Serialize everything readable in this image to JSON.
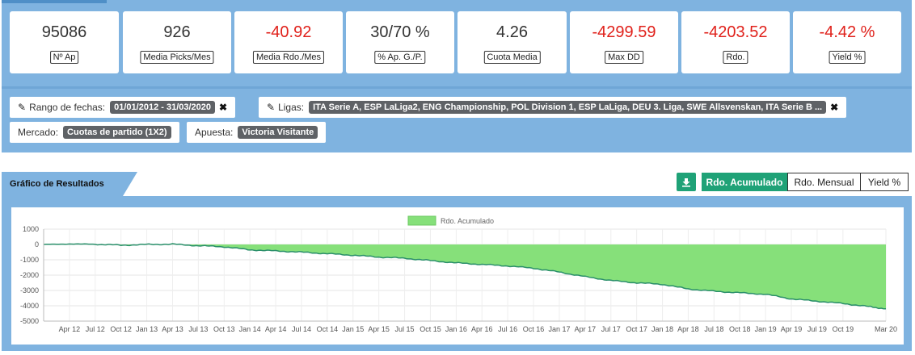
{
  "stats": [
    {
      "value": "95086",
      "label": "Nº Ap",
      "negative": false
    },
    {
      "value": "926",
      "label": "Media Picks/Mes",
      "negative": false
    },
    {
      "value": "-40.92",
      "label": "Media Rdo./Mes",
      "negative": true
    },
    {
      "value": "30/70 %",
      "label": "% Ap. G./P.",
      "negative": false
    },
    {
      "value": "4.26",
      "label": "Cuota Media",
      "negative": false
    },
    {
      "value": "-4299.59",
      "label": "Max DD",
      "negative": true
    },
    {
      "value": "-4203.52",
      "label": "Rdo.",
      "negative": true
    },
    {
      "value": "-4.42 %",
      "label": "Yield %",
      "negative": true
    }
  ],
  "filters": {
    "date_range": {
      "label": "Rango de fechas:",
      "value": "01/01/2012 - 31/03/2020"
    },
    "leagues": {
      "label": "Ligas:",
      "value": "ITA Serie A, ESP LaLiga2, ENG Championship, POL Division 1, ESP LaLiga, DEU 3. Liga, SWE Allsvenskan, ITA Serie B ..."
    },
    "market": {
      "label": "Mercado:",
      "value": "Cuotas de partido (1X2)"
    },
    "bet": {
      "label": "Apuesta:",
      "value": "Victoria Visitante"
    },
    "remove_icon": "close-icon",
    "edit_icon": "pencil-icon"
  },
  "chart_section": {
    "title": "Gráfico de Resultados",
    "download_icon": "download-icon",
    "toggles": [
      "Rdo. Acumulado",
      "Rdo. Mensual",
      "Yield %"
    ],
    "active_toggle": "Rdo. Acumulado"
  },
  "colors": {
    "band": "#7fb3e0",
    "accent": "#1fa277",
    "negative": "#e0201a",
    "area_fill": "#86e07a",
    "area_line": "#2a8f6a"
  },
  "chart_data": {
    "type": "area",
    "series": [
      {
        "name": "Rdo. Acumulado"
      }
    ],
    "x_ticks": [
      "Apr 12",
      "Jul 12",
      "Oct 12",
      "Jan 13",
      "Apr 13",
      "Jul 13",
      "Oct 13",
      "Jan 14",
      "Apr 14",
      "Jul 14",
      "Oct 14",
      "Jan 15",
      "Apr 15",
      "Jul 15",
      "Oct 15",
      "Jan 16",
      "Apr 16",
      "Jul 16",
      "Oct 16",
      "Jan 17",
      "Apr 17",
      "Jul 17",
      "Oct 17",
      "Jan 18",
      "Apr 18",
      "Jul 18",
      "Oct 18",
      "Jan 19",
      "Apr 19",
      "Jul 19",
      "Oct 19",
      "Mar 20"
    ],
    "y_ticks": [
      "1000",
      "0",
      "-1000",
      "-2000",
      "-3000",
      "-4000",
      "-5000"
    ],
    "ylim": [
      -5000,
      1000
    ],
    "points": [
      [
        "2012-01",
        0
      ],
      [
        "2012-04",
        30
      ],
      [
        "2012-07",
        20
      ],
      [
        "2012-10",
        -50
      ],
      [
        "2013-01",
        0
      ],
      [
        "2013-04",
        20
      ],
      [
        "2013-07",
        -80
      ],
      [
        "2013-10",
        -150
      ],
      [
        "2014-01",
        -350
      ],
      [
        "2014-04",
        -420
      ],
      [
        "2014-07",
        -500
      ],
      [
        "2014-10",
        -600
      ],
      [
        "2015-01",
        -700
      ],
      [
        "2015-04",
        -820
      ],
      [
        "2015-07",
        -900
      ],
      [
        "2015-10",
        -1050
      ],
      [
        "2016-01",
        -1200
      ],
      [
        "2016-04",
        -1300
      ],
      [
        "2016-07",
        -1400
      ],
      [
        "2016-10",
        -1550
      ],
      [
        "2017-01",
        -1800
      ],
      [
        "2017-04",
        -2100
      ],
      [
        "2017-07",
        -2350
      ],
      [
        "2017-10",
        -2500
      ],
      [
        "2018-01",
        -2600
      ],
      [
        "2018-04",
        -2900
      ],
      [
        "2018-07",
        -3050
      ],
      [
        "2018-10",
        -3150
      ],
      [
        "2019-01",
        -3250
      ],
      [
        "2019-04",
        -3550
      ],
      [
        "2019-07",
        -3700
      ],
      [
        "2019-10",
        -3850
      ],
      [
        "2020-01",
        -4050
      ],
      [
        "2020-03",
        -4200
      ]
    ]
  }
}
